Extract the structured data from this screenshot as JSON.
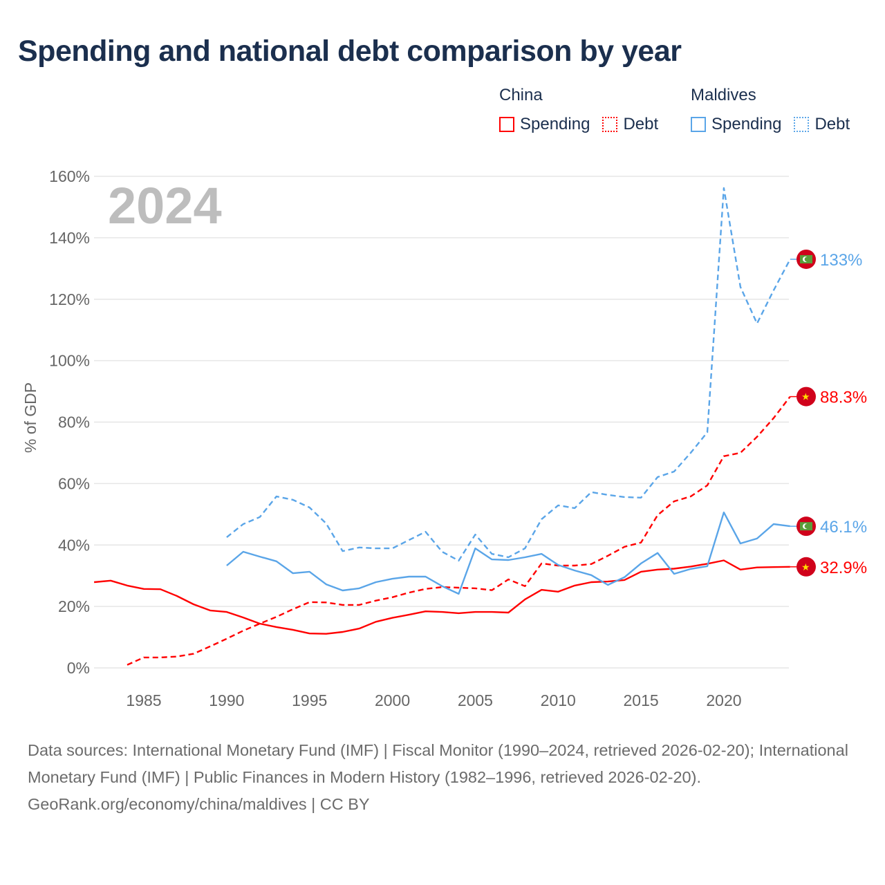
{
  "chart_data": {
    "type": "line",
    "title": "Spending and national debt comparison by year",
    "year_watermark": "2024",
    "ylabel": "% of GDP",
    "xlabel": "",
    "ylim": [
      0,
      160
    ],
    "xlim": [
      1982,
      2024
    ],
    "yticks": [
      0,
      20,
      40,
      60,
      80,
      100,
      120,
      140,
      160
    ],
    "ytick_labels": [
      "0%",
      "20%",
      "40%",
      "60%",
      "80%",
      "100%",
      "120%",
      "140%",
      "160%"
    ],
    "xticks": [
      1985,
      1990,
      1995,
      2000,
      2005,
      2010,
      2015,
      2020
    ],
    "xtick_labels": [
      "1985",
      "1990",
      "1995",
      "2000",
      "2005",
      "2010",
      "2015",
      "2020"
    ],
    "grid": true,
    "legend": {
      "placement": "top-right",
      "groups": [
        {
          "country": "China",
          "items": [
            "Spending",
            "Debt"
          ]
        },
        {
          "country": "Maldives",
          "items": [
            "Spending",
            "Debt"
          ]
        }
      ]
    },
    "series": [
      {
        "name": "China Spending",
        "country": "China",
        "metric": "Spending",
        "color": "#ff0000",
        "dashed": false,
        "start_year": 1982,
        "end_label": "32.9%",
        "values": [
          27.9,
          28.4,
          26.8,
          25.7,
          25.6,
          23.4,
          20.7,
          18.7,
          18.2,
          16.4,
          14.4,
          13.3,
          12.4,
          11.2,
          11.1,
          11.7,
          12.8,
          15.0,
          16.3,
          17.3,
          18.4,
          18.2,
          17.8,
          18.2,
          18.2,
          18.0,
          22.3,
          25.4,
          24.8,
          26.8,
          27.9,
          28.1,
          28.6,
          31.3,
          32.0,
          32.3,
          33.0,
          33.9,
          35.0,
          32.0,
          32.7,
          32.8,
          32.9
        ]
      },
      {
        "name": "China Debt",
        "country": "China",
        "metric": "Debt",
        "color": "#ff0000",
        "dashed": true,
        "start_year": 1984,
        "end_label": "88.3%",
        "values": [
          1.0,
          3.4,
          3.4,
          3.7,
          4.6,
          7.0,
          9.5,
          12.1,
          14.4,
          16.6,
          19.1,
          21.4,
          21.3,
          20.5,
          20.5,
          21.9,
          23.0,
          24.5,
          25.7,
          26.3,
          26.1,
          25.9,
          25.3,
          28.8,
          26.6,
          34.0,
          33.3,
          33.3,
          33.8,
          36.5,
          39.4,
          40.8,
          49.7,
          54.2,
          55.8,
          59.4,
          68.9,
          70.0,
          75.2,
          81.3,
          88.3
        ]
      },
      {
        "name": "Maldives Spending",
        "country": "Maldives",
        "metric": "Spending",
        "color": "#5aa5e8",
        "dashed": false,
        "start_year": 1990,
        "end_label": "46.1%",
        "values": [
          33.3,
          37.8,
          36.2,
          34.7,
          30.8,
          31.3,
          27.2,
          25.2,
          25.9,
          27.9,
          29.0,
          29.7,
          29.7,
          26.6,
          24.1,
          38.9,
          35.3,
          35.1,
          36.0,
          37.1,
          33.5,
          31.7,
          30.2,
          27.0,
          29.5,
          34.0,
          37.4,
          30.6,
          32.2,
          33.1,
          50.6,
          40.5,
          42.1,
          46.8,
          46.1
        ]
      },
      {
        "name": "Maldives Debt",
        "country": "Maldives",
        "metric": "Debt",
        "color": "#5aa5e8",
        "dashed": true,
        "start_year": 1990,
        "end_label": "133%",
        "values": [
          42.5,
          46.8,
          49.1,
          55.8,
          54.7,
          52.2,
          47.0,
          38.0,
          39.2,
          38.9,
          38.9,
          41.6,
          44.3,
          37.8,
          34.9,
          43.4,
          37.1,
          36.0,
          38.9,
          48.4,
          52.9,
          52.0,
          57.2,
          56.3,
          55.6,
          55.4,
          62.1,
          63.9,
          70.0,
          76.7,
          156.2,
          124.0,
          112.1,
          122.9,
          133.0
        ]
      }
    ]
  },
  "colors": {
    "china": "#ff0000",
    "maldives": "#5aa5e8",
    "title": "#1b2f4e"
  },
  "source": {
    "line1": "Data sources: International Monetary Fund (IMF) | Fiscal Monitor (1990–2024, retrieved 2026-02-20); International Monetary Fund (IMF) | Public Finances in Modern History (1982–1996, retrieved 2026-02-20).",
    "line2": "GeoRank.org/economy/china/maldives | CC BY"
  }
}
